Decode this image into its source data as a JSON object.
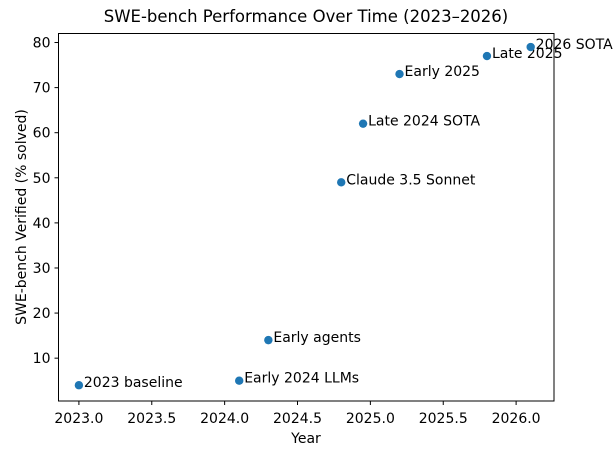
{
  "chart_data": {
    "type": "scatter",
    "title": "SWE-bench Performance Over Time (2023–2026)",
    "xlabel": "Year",
    "ylabel": "SWE-bench Verified (% solved)",
    "xlim": [
      2022.86,
      2026.26
    ],
    "ylim": [
      0.5,
      82.0
    ],
    "x_ticks": [
      2023.0,
      2023.5,
      2024.0,
      2024.5,
      2025.0,
      2025.5,
      2026.0
    ],
    "x_tick_labels": [
      "2023.0",
      "2023.5",
      "2024.0",
      "2024.5",
      "2025.0",
      "2025.5",
      "2026.0"
    ],
    "y_ticks": [
      10,
      20,
      30,
      40,
      50,
      60,
      70,
      80
    ],
    "y_tick_labels": [
      "10",
      "20",
      "30",
      "40",
      "50",
      "60",
      "70",
      "80"
    ],
    "grid": false,
    "legend": null,
    "marker_color": "#1f77b4",
    "axis_color": "#000000",
    "points": [
      {
        "x": 2023.0,
        "y": 4,
        "label": "2023 baseline"
      },
      {
        "x": 2024.1,
        "y": 5,
        "label": "Early 2024 LLMs"
      },
      {
        "x": 2024.3,
        "y": 14,
        "label": "Early agents"
      },
      {
        "x": 2024.8,
        "y": 49,
        "label": "Claude 3.5 Sonnet"
      },
      {
        "x": 2024.95,
        "y": 62,
        "label": "Late 2024 SOTA"
      },
      {
        "x": 2025.2,
        "y": 73,
        "label": "Early 2025"
      },
      {
        "x": 2025.8,
        "y": 77,
        "label": "Late 2025"
      },
      {
        "x": 2026.1,
        "y": 79,
        "label": "2026 SOTA"
      }
    ]
  }
}
